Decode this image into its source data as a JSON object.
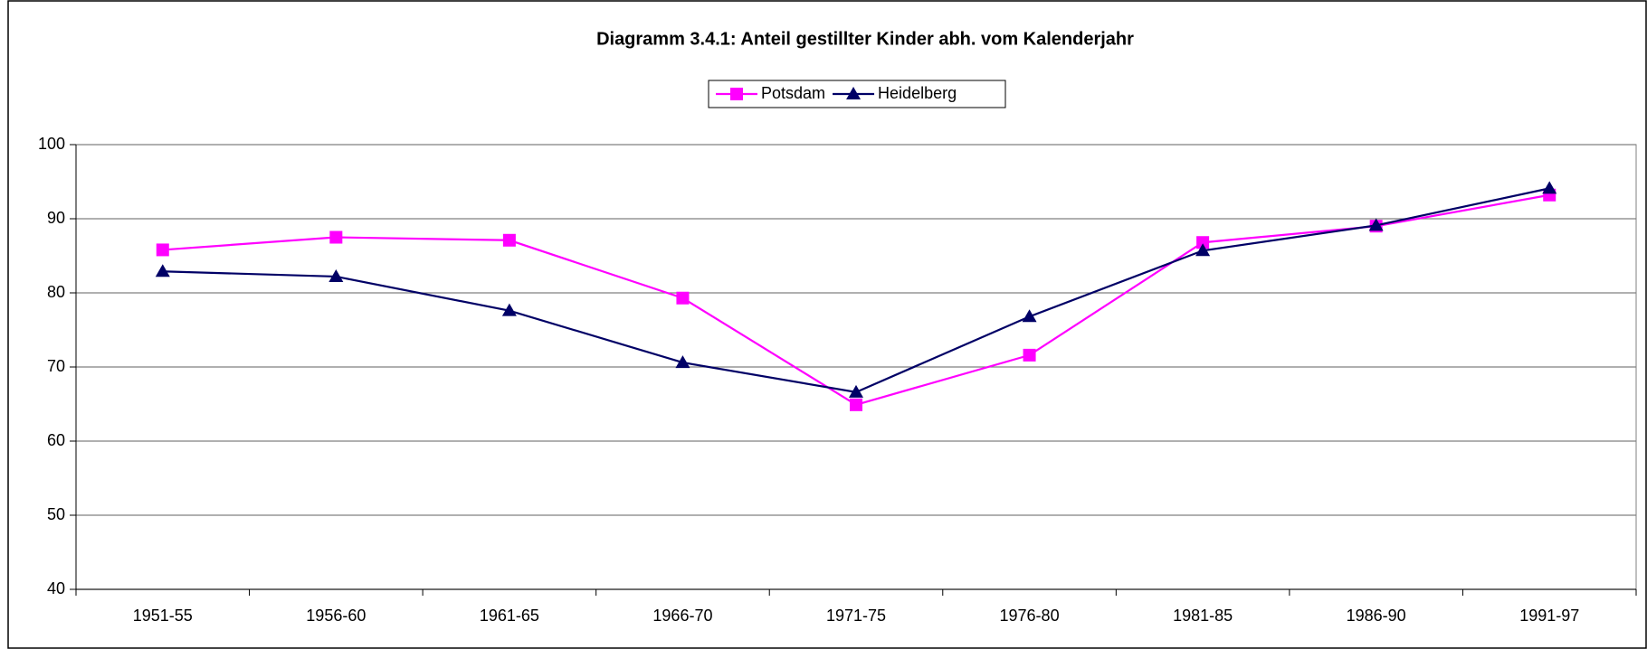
{
  "chart_data": {
    "type": "line",
    "title": "Diagramm 3.4.1: Anteil gestillter Kinder abh. vom Kalenderjahr",
    "categories": [
      "1951-55",
      "1956-60",
      "1961-65",
      "1966-70",
      "1971-75",
      "1976-80",
      "1981-85",
      "1986-90",
      "1991-97"
    ],
    "series": [
      {
        "name": "Potsdam",
        "color": "#ff00ff",
        "marker": "square",
        "values": [
          85.8,
          87.5,
          87.1,
          79.3,
          64.9,
          71.6,
          86.8,
          89.0,
          93.2
        ]
      },
      {
        "name": "Heidelberg",
        "color": "#000066",
        "marker": "triangle",
        "values": [
          82.9,
          82.2,
          77.6,
          70.6,
          66.6,
          76.8,
          85.7,
          89.1,
          94.1
        ]
      }
    ],
    "ylim": [
      40,
      100
    ],
    "yticks": [
      40,
      50,
      60,
      70,
      80,
      90,
      100
    ],
    "grid": true,
    "legend": "top"
  }
}
